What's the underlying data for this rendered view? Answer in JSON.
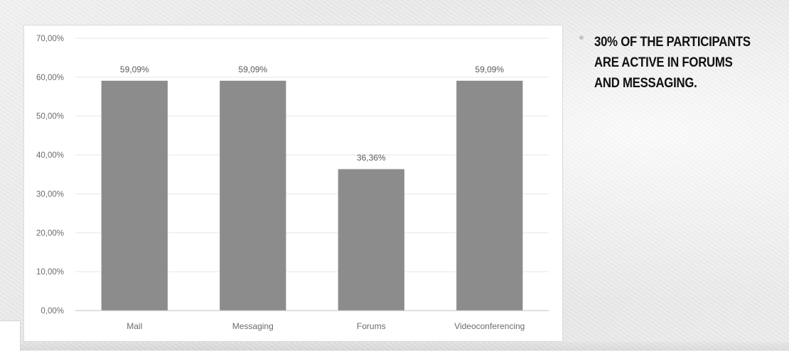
{
  "slide": {
    "bullet": "30% OF THE PARTICIPANTS\nARE ACTIVE  IN FORUMS\nAND MESSAGING."
  },
  "chart_data": {
    "type": "bar",
    "categories": [
      "Mail",
      "Messaging",
      "Forums",
      "Videoconferencing"
    ],
    "values": [
      59.09,
      59.09,
      36.36,
      59.09
    ],
    "data_labels": [
      "59,09%",
      "59,09%",
      "36,36%",
      "59,09%"
    ],
    "yticks": [
      "0,00%",
      "10,00%",
      "20,00%",
      "30,00%",
      "40,00%",
      "50,00%",
      "60,00%",
      "70,00%"
    ],
    "ylim": [
      0,
      70
    ],
    "grid": true,
    "bar_color": "#8c8c8c",
    "grid_color": "#e6e6e6",
    "axis_color": "#bfbfbf",
    "title": "",
    "xlabel": "",
    "ylabel": ""
  }
}
